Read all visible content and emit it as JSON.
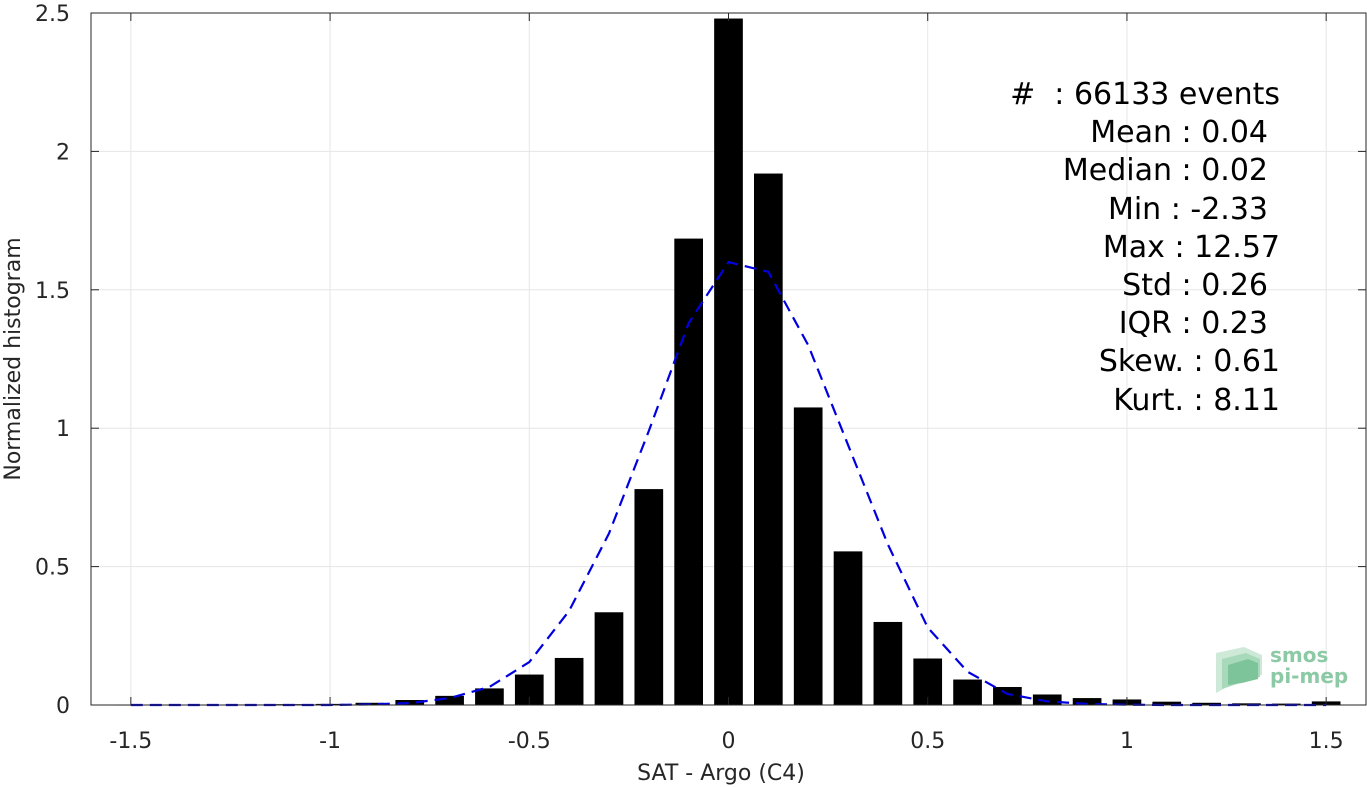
{
  "chart_data": {
    "type": "bar",
    "xlabel": "SAT - Argo (C4)",
    "ylabel": "Normalized histogram",
    "xlim": [
      -1.6,
      1.6
    ],
    "ylim": [
      0,
      2.5
    ],
    "xticks": [
      "-1.5",
      "-1",
      "-0.5",
      "0",
      "0.5",
      "1",
      "1.5"
    ],
    "xtick_values": [
      -1.5,
      -1,
      -0.5,
      0,
      0.5,
      1,
      1.5
    ],
    "yticks": [
      "0",
      "0.5",
      "1",
      "1.5",
      "2",
      "2.5"
    ],
    "ytick_values": [
      0,
      0.5,
      1,
      1.5,
      2,
      2.5
    ],
    "grid": true,
    "bar_color": "#000000",
    "bins": [
      -1.5,
      -1.4,
      -1.3,
      -1.2,
      -1.1,
      -1.0,
      -0.9,
      -0.8,
      -0.7,
      -0.6,
      -0.5,
      -0.4,
      -0.3,
      -0.2,
      -0.1,
      0.0,
      0.1,
      0.2,
      0.3,
      0.4,
      0.5,
      0.6,
      0.7,
      0.8,
      0.9,
      1.0,
      1.1,
      1.2,
      1.3,
      1.4,
      1.5
    ],
    "values": [
      0.001,
      0.001,
      0.001,
      0.002,
      0.003,
      0.004,
      0.008,
      0.018,
      0.033,
      0.06,
      0.11,
      0.17,
      0.335,
      0.78,
      1.685,
      2.48,
      1.92,
      1.075,
      0.555,
      0.3,
      0.168,
      0.092,
      0.065,
      0.038,
      0.025,
      0.02,
      0.012,
      0.008,
      0.006,
      0.005,
      0.013
    ],
    "fit_curve": {
      "color": "#0000e0",
      "style": "dashed",
      "x": [
        -1.5,
        -1.4,
        -1.3,
        -1.2,
        -1.1,
        -1.0,
        -0.9,
        -0.8,
        -0.7,
        -0.6,
        -0.5,
        -0.4,
        -0.3,
        -0.2,
        -0.1,
        0.0,
        0.1,
        0.2,
        0.3,
        0.4,
        0.5,
        0.6,
        0.7,
        0.8,
        0.9,
        1.0,
        1.1,
        1.2,
        1.3,
        1.4,
        1.5
      ],
      "y": [
        0.0,
        0.0,
        0.0,
        0.0,
        0.0,
        0.0,
        0.002,
        0.007,
        0.025,
        0.065,
        0.155,
        0.34,
        0.62,
        0.99,
        1.38,
        1.6,
        1.565,
        1.3,
        0.94,
        0.58,
        0.28,
        0.12,
        0.04,
        0.013,
        0.004,
        0.001,
        0.0,
        0.0,
        0.0,
        0.0,
        0.0
      ]
    }
  },
  "stats": [
    {
      "text": "#  : 66133 events",
      "indent": 0
    },
    {
      "text": "Mean : 0.04",
      "indent": 1
    },
    {
      "text": "Median : 0.02",
      "indent": 1
    },
    {
      "text": "Min : -2.33",
      "indent": 1
    },
    {
      "text": "Max : 12.57",
      "indent": 0
    },
    {
      "text": "Std : 0.26",
      "indent": 1
    },
    {
      "text": "IQR : 0.23",
      "indent": 1
    },
    {
      "text": "Skew. : 0.61",
      "indent": 0
    },
    {
      "text": "Kurt. : 8.11",
      "indent": 0
    }
  ],
  "logo": {
    "line1": "smos",
    "line2": "pi-mep",
    "color": "#8cc9a5"
  }
}
